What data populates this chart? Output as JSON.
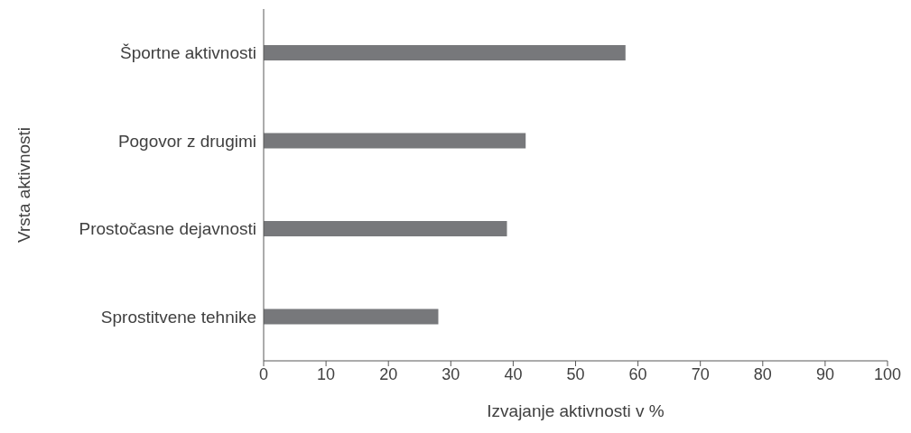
{
  "chart_data": {
    "type": "bar",
    "orientation": "horizontal",
    "xlabel": "Izvajanje aktivnosti v %",
    "ylabel": "Vrsta aktivnosti",
    "categories": [
      "Športne aktivnosti",
      "Pogovor z drugimi",
      "Prostočasne dejavnosti",
      "Sprostitvene tehnike"
    ],
    "values": [
      58,
      42,
      39,
      28
    ],
    "color": "#77787b",
    "xlim": [
      0,
      100
    ],
    "xticks": [
      0,
      10,
      20,
      30,
      40,
      50,
      60,
      70,
      80,
      90,
      100
    ],
    "grid": false,
    "legend": false
  }
}
